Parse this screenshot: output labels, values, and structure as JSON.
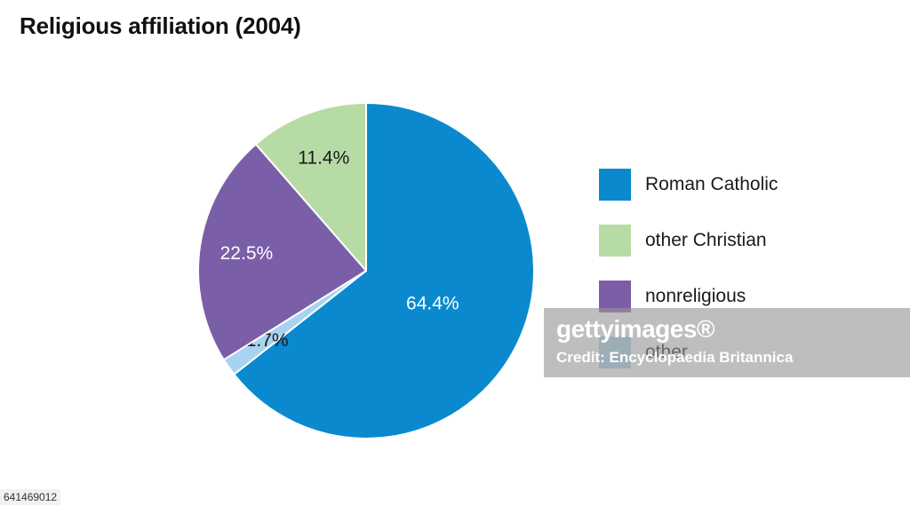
{
  "title": "Religious affiliation (2004)",
  "chart_data": {
    "type": "pie",
    "title": "Religious affiliation (2004)",
    "slices": [
      {
        "label": "Roman Catholic",
        "value": 64.4,
        "value_label": "64.4%",
        "color": "#0a89cf",
        "label_color": "#ffffff"
      },
      {
        "label": "other",
        "value": 1.7,
        "value_label": "1.7%",
        "color": "#a8d3f0",
        "label_color": "#1a1a1a"
      },
      {
        "label": "nonreligious",
        "value": 22.5,
        "value_label": "22.5%",
        "color": "#7b5ea8",
        "label_color": "#ffffff"
      },
      {
        "label": "other Christian",
        "value": 11.4,
        "value_label": "11.4%",
        "color": "#b7dba5",
        "label_color": "#1a1a1a"
      }
    ],
    "legend": {
      "position": "right",
      "items": [
        "Roman Catholic",
        "other Christian",
        "nonreligious",
        "other"
      ]
    }
  },
  "legend_colors": {
    "Roman Catholic": "#0a89cf",
    "other Christian": "#b7dba5",
    "nonreligious": "#7b5ea8",
    "other": "#a8d3f0"
  },
  "watermark": {
    "brand": "gettyimages®",
    "credit": "Credit: Encyclopaedia Britannica"
  },
  "image_id": "641469012"
}
